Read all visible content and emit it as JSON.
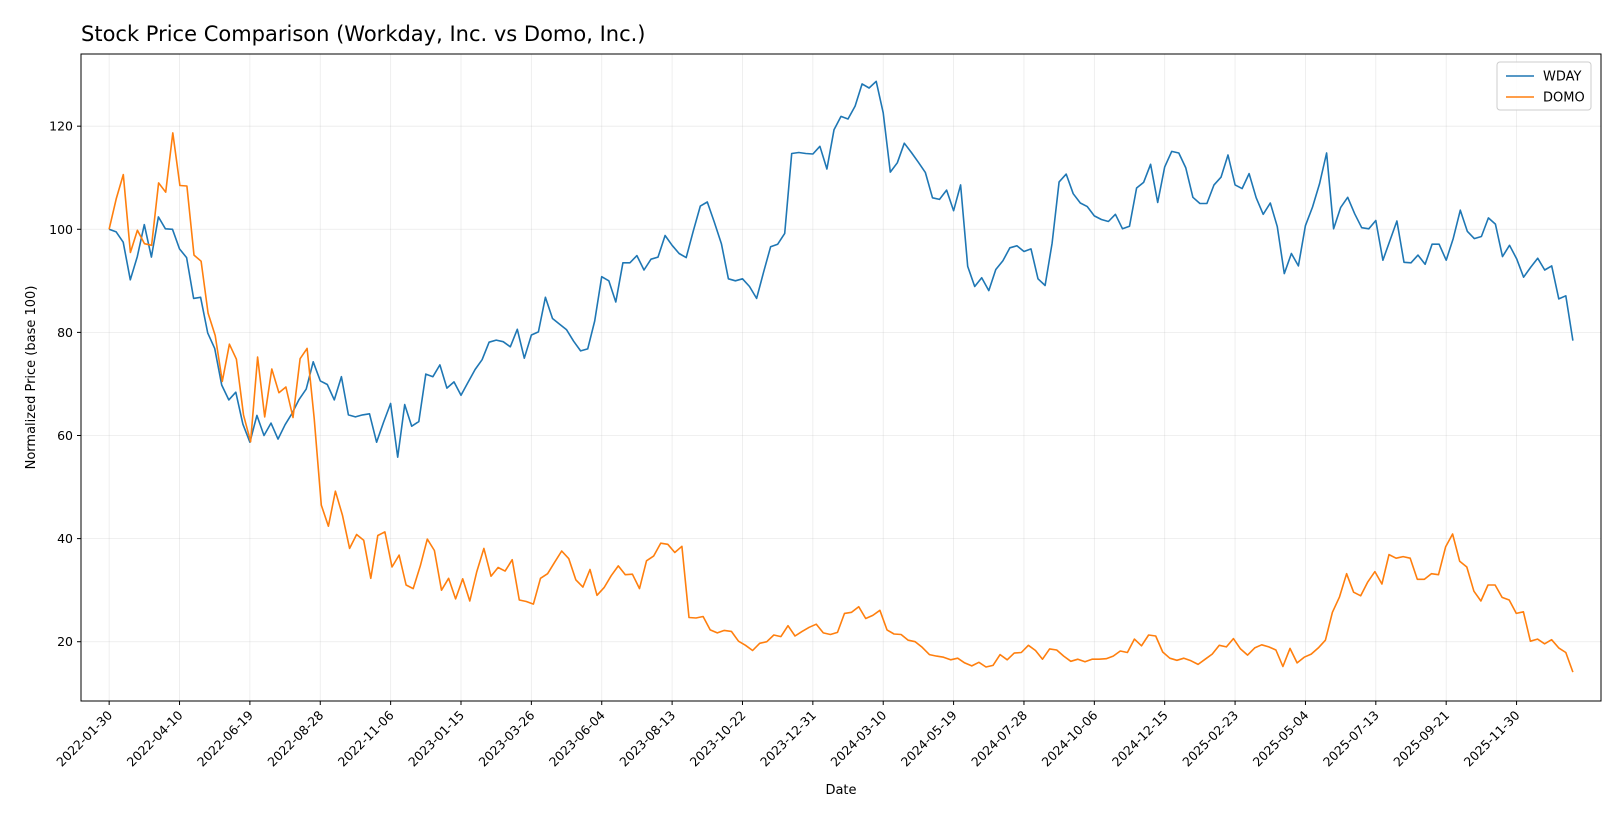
{
  "chart_data": {
    "type": "line",
    "title": "Stock Price Comparison (Workday, Inc. vs Domo, Inc.)",
    "xlabel": "Date",
    "ylabel": "Normalized Price (base 100)",
    "x_start": "2022-01-30",
    "x_end": "2026-01-25",
    "xlim": [
      "2022-01-02",
      "2026-02-22"
    ],
    "ylim": [
      8.5,
      134
    ],
    "y_ticks": [
      20,
      40,
      60,
      80,
      100,
      120
    ],
    "x_ticks": [
      "2022-01-30",
      "2022-04-10",
      "2022-06-19",
      "2022-08-28",
      "2022-11-06",
      "2023-01-15",
      "2023-03-26",
      "2023-06-04",
      "2023-08-13",
      "2023-10-22",
      "2023-12-31",
      "2024-03-10",
      "2024-05-19",
      "2024-07-28",
      "2024-10-06",
      "2024-12-15",
      "2025-02-23",
      "2025-05-04",
      "2025-07-13",
      "2025-09-21",
      "2025-11-30"
    ],
    "grid": true,
    "legend_position": "top-right",
    "series": [
      {
        "name": "WDAY",
        "color": "#1f77b4",
        "values": [
          100.0,
          99.5,
          97.5,
          90.2,
          94.7,
          100.9,
          94.6,
          102.4,
          100.1,
          100.0,
          96.2,
          94.5,
          86.6,
          86.8,
          79.9,
          76.9,
          69.8,
          66.9,
          68.4,
          62.2,
          58.7,
          63.9,
          60.0,
          62.4,
          59.3,
          62.1,
          64.3,
          67.0,
          69.0,
          74.3,
          70.6,
          69.9,
          66.9,
          71.4,
          64.0,
          63.6,
          64.0,
          64.2,
          58.7,
          62.6,
          66.2,
          55.8,
          66.0,
          61.8,
          62.7,
          71.9,
          71.4,
          73.7,
          69.2,
          70.4,
          67.8,
          70.3,
          72.8,
          74.7,
          78.1,
          78.5,
          78.2,
          77.2,
          80.6,
          75.0,
          79.5,
          80.1,
          86.8,
          82.7,
          81.6,
          80.5,
          78.3,
          76.4,
          76.8,
          82.2,
          90.8,
          90.0,
          85.9,
          93.5,
          93.5,
          94.9,
          92.1,
          94.2,
          94.6,
          98.8,
          96.9,
          95.3,
          94.5,
          99.6,
          104.5,
          105.3,
          101.4,
          97.2,
          90.4,
          90.0,
          90.4,
          88.9,
          86.6,
          91.7,
          96.6,
          97.1,
          99.2,
          114.7,
          114.9,
          114.7,
          114.6,
          116.1,
          111.7,
          119.3,
          121.9,
          121.4,
          123.9,
          128.2,
          127.4,
          128.7,
          122.6,
          111.1,
          112.9,
          116.7,
          114.9,
          113.0,
          111.0,
          106.1,
          105.8,
          107.6,
          103.6,
          108.6,
          92.8,
          88.9,
          90.6,
          88.1,
          92.2,
          93.9,
          96.4,
          96.8,
          95.7,
          96.2,
          90.4,
          89.1,
          97.3,
          109.2,
          110.7,
          106.9,
          105.1,
          104.4,
          102.6,
          101.9,
          101.5,
          102.9,
          100.1,
          100.6,
          108.0,
          109.1,
          112.6,
          105.2,
          112.1,
          115.1,
          114.8,
          111.9,
          106.2,
          105.0,
          105.0,
          108.6,
          110.1,
          114.4,
          108.6,
          107.9,
          110.8,
          106.1,
          102.9,
          105.1,
          100.5,
          91.4,
          95.3,
          92.9,
          100.7,
          104.3,
          108.8,
          114.8,
          100.1,
          104.2,
          106.2,
          103.0,
          100.3,
          100.1,
          101.7,
          94.0,
          97.8,
          101.6,
          93.6,
          93.5,
          95.0,
          93.2,
          97.1,
          97.1,
          94.0,
          98.2,
          103.7,
          99.6,
          98.2,
          98.6,
          102.2,
          101.0,
          94.7,
          96.9,
          94.3,
          90.7,
          92.6,
          94.4,
          92.1,
          92.9,
          86.5,
          87.1,
          78.4
        ]
      },
      {
        "name": "DOMO",
        "color": "#ff7f0e",
        "values": [
          100.0,
          105.9,
          110.6,
          95.5,
          99.8,
          97.2,
          96.9,
          109.0,
          107.2,
          118.7,
          108.5,
          108.4,
          95.0,
          93.8,
          83.7,
          79.4,
          70.5,
          77.7,
          74.8,
          64.0,
          58.8,
          75.2,
          63.6,
          72.9,
          68.3,
          69.4,
          63.5,
          74.9,
          76.9,
          63.3,
          46.5,
          42.4,
          49.2,
          44.5,
          38.1,
          40.8,
          39.7,
          32.3,
          40.6,
          41.3,
          34.5,
          36.8,
          31.0,
          30.3,
          34.7,
          39.9,
          37.7,
          30.0,
          32.3,
          28.3,
          32.2,
          27.9,
          33.6,
          38.1,
          32.7,
          34.4,
          33.7,
          35.9,
          28.1,
          27.8,
          27.3,
          32.3,
          33.2,
          35.4,
          37.6,
          36.1,
          32.0,
          30.6,
          34.0,
          29.0,
          30.5,
          32.8,
          34.7,
          33.0,
          33.1,
          30.3,
          35.7,
          36.6,
          39.1,
          38.9,
          37.3,
          38.5,
          24.7,
          24.6,
          24.9,
          22.3,
          21.7,
          22.2,
          22.0,
          20.1,
          19.3,
          18.3,
          19.7,
          20.0,
          21.3,
          21.0,
          23.1,
          21.1,
          22.0,
          22.8,
          23.4,
          21.7,
          21.4,
          21.8,
          25.5,
          25.7,
          26.8,
          24.5,
          25.1,
          26.1,
          22.3,
          21.5,
          21.4,
          20.3,
          20.0,
          18.9,
          17.5,
          17.2,
          17.0,
          16.5,
          16.8,
          15.9,
          15.3,
          16.0,
          15.1,
          15.4,
          17.5,
          16.5,
          17.8,
          17.9,
          19.3,
          18.3,
          16.6,
          18.6,
          18.4,
          17.2,
          16.2,
          16.6,
          16.1,
          16.6,
          16.6,
          16.7,
          17.2,
          18.2,
          17.9,
          20.5,
          19.2,
          21.3,
          21.1,
          18.0,
          16.8,
          16.4,
          16.8,
          16.3,
          15.6,
          16.6,
          17.6,
          19.3,
          19.0,
          20.6,
          18.6,
          17.4,
          18.8,
          19.4,
          19.0,
          18.4,
          15.2,
          18.7,
          15.9,
          17.0,
          17.6,
          18.8,
          20.3,
          25.7,
          28.7,
          33.2,
          29.6,
          28.9,
          31.6,
          33.6,
          31.2,
          36.9,
          36.2,
          36.5,
          36.2,
          32.1,
          32.1,
          33.2,
          33.0,
          38.4,
          40.9,
          35.6,
          34.5,
          29.8,
          27.9,
          31.0,
          31.0,
          28.6,
          28.1,
          25.5,
          25.8,
          20.1,
          20.5,
          19.6,
          20.4,
          18.8,
          17.9,
          14.1
        ]
      }
    ]
  }
}
